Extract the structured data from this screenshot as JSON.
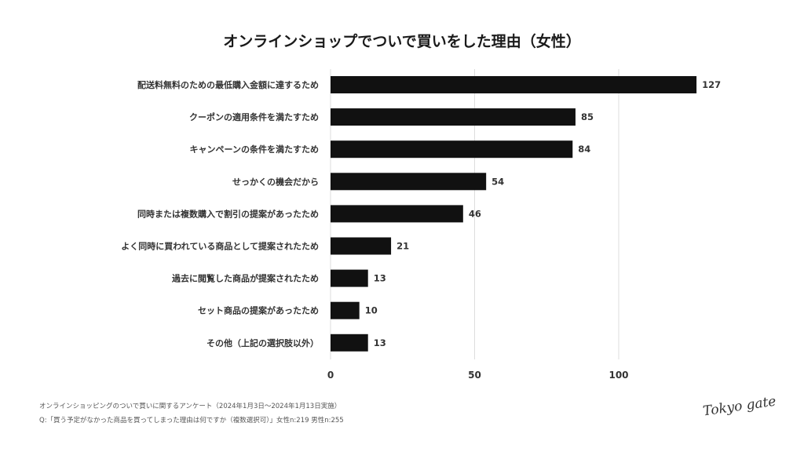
{
  "title": "オンラインショップでついで買いをした理由（女性）",
  "chart_data": {
    "type": "bar",
    "orientation": "horizontal",
    "title": "オンラインショップでついで買いをした理由（女性）",
    "categories": [
      "配送料無料のための最低購入金額に達するため",
      "クーポンの適用条件を満たすため",
      "キャンペーンの条件を満たすため",
      "せっかくの機会だから",
      "同時または複数購入で割引の提案があったため",
      "よく同時に買われている商品として提案されたため",
      "過去に閲覧した商品が提案されたため",
      "セット商品の提案があったため",
      "その他（上記の選択肢以外）"
    ],
    "values": [
      127,
      85,
      84,
      54,
      46,
      21,
      13,
      10,
      13
    ],
    "xlim": [
      0,
      130
    ],
    "xticks": [
      0,
      50,
      100
    ],
    "grid": true,
    "bar_color": "#111111",
    "grid_color": "#dddddd"
  },
  "footer": {
    "line1": "オンラインショッピングのついで買いに関するアンケート（2024年1月3日〜2024年1月13日実施）",
    "line2": "Q:「買う予定がなかった商品を買ってしまった理由は何ですか（複数選択可）」女性n:219 男性n:255"
  },
  "logo": "Tokyo gate"
}
